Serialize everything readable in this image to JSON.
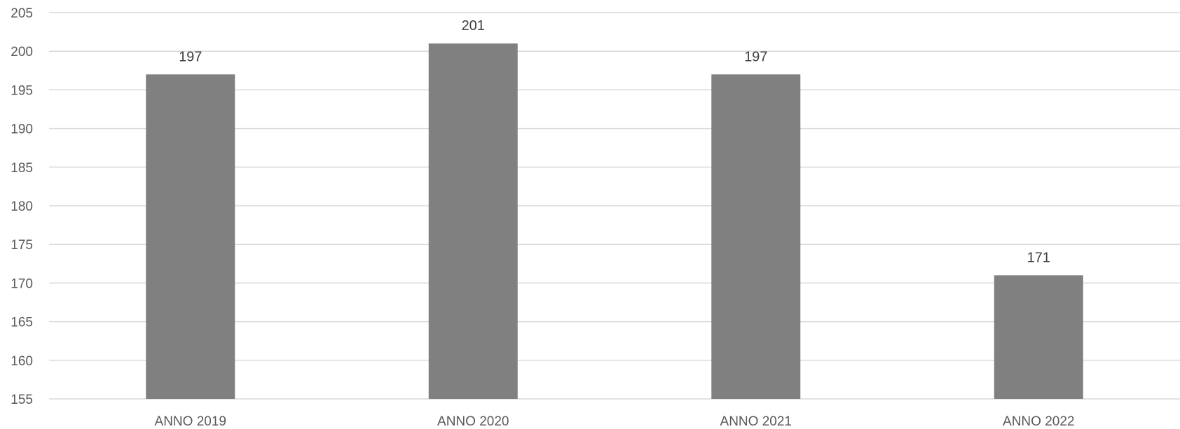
{
  "chart_data": {
    "type": "bar",
    "categories": [
      "ANNO 2019",
      "ANNO 2020",
      "ANNO 2021",
      "ANNO 2022"
    ],
    "values": [
      197,
      201,
      197,
      171
    ],
    "title": "",
    "xlabel": "",
    "ylabel": "",
    "ylim": [
      155,
      205
    ],
    "yticks": [
      155,
      160,
      165,
      170,
      175,
      180,
      185,
      190,
      195,
      200,
      205
    ],
    "grid": true,
    "legend": "none",
    "data_labels": true,
    "bar_color": "#808080"
  }
}
